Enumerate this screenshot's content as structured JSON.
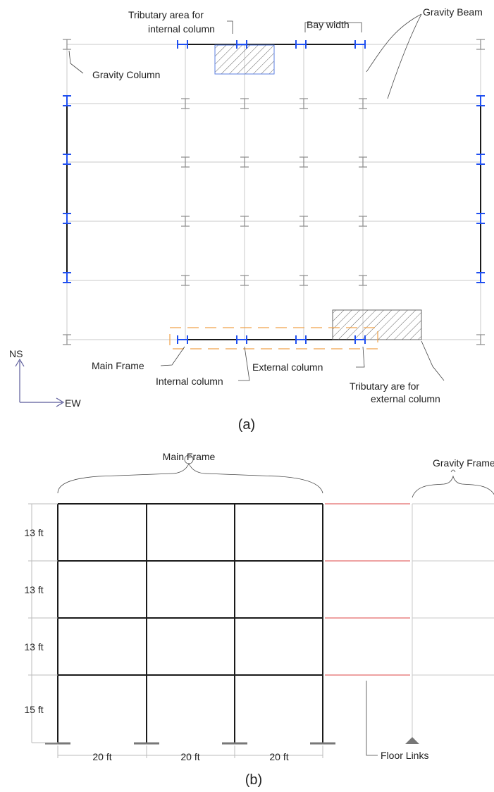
{
  "plan": {
    "caption": "(a)",
    "labels": {
      "tributary_internal_line1": "Tributary area for",
      "tributary_internal_line2": "internal column",
      "bay_width": "Bay width",
      "gravity_beam": "Gravity Beam",
      "gravity_column": "Gravity Column",
      "main_frame": "Main Frame",
      "internal_column": "Internal column",
      "external_column": "External column",
      "tributary_external_line1": "Tributary are for",
      "tributary_external_line2": "external column"
    },
    "axis_ns": "NS",
    "axis_ew": "EW",
    "colors": {
      "main_column": "#1f4ff0",
      "gravity_column": "#8a8a8a",
      "main_frame_box": "#f0a24a",
      "tributary_internal_border": "#5b7fe0",
      "hatch": "#666666"
    }
  },
  "elevation": {
    "caption": "(b)",
    "labels": {
      "main_frame": "Main Frame",
      "gravity_frame": "Gravity Frame",
      "floor_links": "Floor Links"
    },
    "story_heights": [
      "13 ft",
      "13 ft",
      "13 ft",
      "15 ft"
    ],
    "bay_widths": [
      "20 ft",
      "20 ft",
      "20 ft"
    ],
    "colors": {
      "floor_link": "#e36a6a",
      "support": "#777777"
    }
  }
}
